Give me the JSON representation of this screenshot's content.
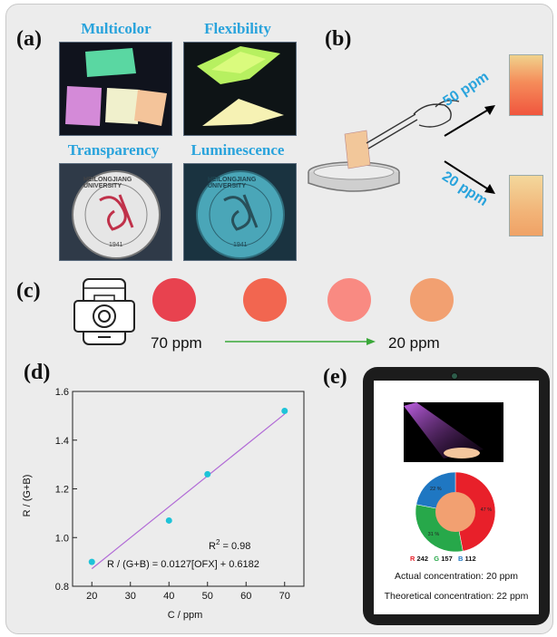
{
  "panels": {
    "a": "(a)",
    "b": "(b)",
    "c": "(c)",
    "d": "(d)",
    "e": "(e)"
  },
  "panel_a": {
    "captions": [
      "Multicolor",
      "Flexibility",
      "Transparency",
      "Luminescence"
    ],
    "seal_text": "HEILONGJIANG UNIVERSITY",
    "seal_year": "1941"
  },
  "panel_b": {
    "high_label": "50 ppm",
    "low_label": "20 ppm"
  },
  "panel_c": {
    "start_label": "70 ppm",
    "end_label": "20 ppm",
    "colors": [
      "#e8424f",
      "#f26650",
      "#f98a82",
      "#f2a071"
    ]
  },
  "panel_e": {
    "r_label": "R",
    "r_value": "242",
    "g_label": "G",
    "g_value": "157",
    "b_label": "B",
    "b_value": "112",
    "actual": "Actual concentration: 20 ppm",
    "theoretical": "Theoretical concentration: 22 ppm",
    "slices": [
      {
        "label": "47 %",
        "value": 47,
        "color": "#e8202a"
      },
      {
        "label": "31 %",
        "value": 31,
        "color": "#27a84a"
      },
      {
        "label": "22 %",
        "value": 22,
        "color": "#1f77c2"
      }
    ],
    "colors": {
      "r": "#e8202a",
      "g": "#27a84a",
      "b": "#1f77c2"
    }
  },
  "chart_data": {
    "type": "scatter",
    "xlabel": "C / ppm",
    "ylabel": "R / (G+B)",
    "xlim": [
      15,
      75
    ],
    "ylim": [
      0.8,
      1.6
    ],
    "xticks": [
      20,
      30,
      40,
      50,
      60,
      70
    ],
    "yticks": [
      0.8,
      1.0,
      1.2,
      1.4,
      1.6
    ],
    "points": [
      {
        "x": 20,
        "y": 0.9
      },
      {
        "x": 40,
        "y": 1.07
      },
      {
        "x": 50,
        "y": 1.26
      },
      {
        "x": 70,
        "y": 1.52
      }
    ],
    "fit": {
      "slope": 0.0127,
      "intercept": 0.6182,
      "x_range": [
        20,
        70
      ],
      "color": "#b16ad6"
    },
    "point_color": "#1ec3d8",
    "r2_prefix": "R",
    "r2_sup": "2",
    "r2_value": " = 0.98",
    "equation": "R / (G+B) = 0.0127[OFX] + 0.6182"
  }
}
